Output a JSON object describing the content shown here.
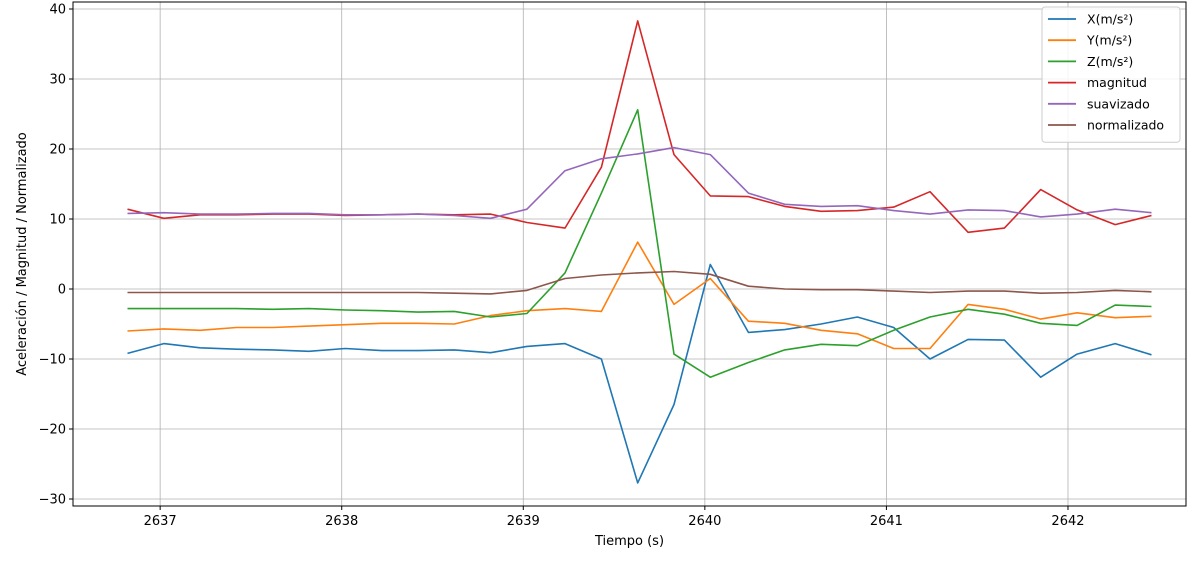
{
  "chart_data": {
    "type": "line",
    "xlabel": "Tiempo (s)",
    "ylabel": "Aceleración / Magnitud / Normalizado",
    "xlim": [
      2636.52,
      2642.65
    ],
    "ylim": [
      -31,
      41
    ],
    "xticks": [
      2637,
      2638,
      2639,
      2640,
      2641,
      2642
    ],
    "xtick_labels": [
      "2637",
      "2638",
      "2639",
      "2640",
      "2641",
      "2642"
    ],
    "yticks": [
      -30,
      -20,
      -10,
      0,
      10,
      20,
      30,
      40
    ],
    "ytick_labels": [
      "−30",
      "−20",
      "−10",
      "0",
      "10",
      "20",
      "30",
      "40"
    ],
    "grid": true,
    "legend_position": "top-right",
    "x": [
      2636.82,
      2637.02,
      2637.22,
      2637.42,
      2637.62,
      2637.82,
      2638.02,
      2638.22,
      2638.42,
      2638.62,
      2638.82,
      2639.02,
      2639.23,
      2639.43,
      2639.63,
      2639.83,
      2640.03,
      2640.24,
      2640.44,
      2640.64,
      2640.84,
      2641.04,
      2641.24,
      2641.45,
      2641.65,
      2641.85,
      2642.05,
      2642.26,
      2642.46
    ],
    "series": [
      {
        "name": "X(m/s²)",
        "color": "#1f77b4",
        "values": [
          -9.2,
          -7.8,
          -8.4,
          -8.6,
          -8.7,
          -8.9,
          -8.5,
          -8.8,
          -8.8,
          -8.7,
          -9.1,
          -8.2,
          -7.8,
          -10.0,
          -27.7,
          -16.5,
          3.5,
          -6.2,
          -5.8,
          -5.0,
          -4.0,
          -5.5,
          -10.0,
          -7.2,
          -7.3,
          -12.6,
          -9.3,
          -7.8,
          -9.4
        ]
      },
      {
        "name": "Y(m/s²)",
        "color": "#ff7f0e",
        "values": [
          -6.0,
          -5.7,
          -5.9,
          -5.5,
          -5.5,
          -5.3,
          -5.1,
          -4.9,
          -4.9,
          -5.0,
          -3.8,
          -3.1,
          -2.8,
          -3.2,
          6.7,
          -2.2,
          1.5,
          -4.6,
          -4.9,
          -5.9,
          -6.4,
          -8.5,
          -8.5,
          -2.2,
          -2.9,
          -4.3,
          -3.4,
          -4.1,
          -3.9
        ]
      },
      {
        "name": "Z(m/s²)",
        "color": "#2ca02c",
        "values": [
          -2.8,
          -2.8,
          -2.8,
          -2.8,
          -2.9,
          -2.8,
          -3.0,
          -3.1,
          -3.3,
          -3.2,
          -4.0,
          -3.5,
          2.3,
          13.7,
          25.6,
          -9.3,
          -12.6,
          -10.5,
          -8.7,
          -7.9,
          -8.1,
          -5.9,
          -4.0,
          -2.9,
          -3.6,
          -4.9,
          -5.2,
          -2.3,
          -2.5
        ]
      },
      {
        "name": "magnitud",
        "color": "#d62728",
        "values": [
          11.4,
          10.1,
          10.6,
          10.6,
          10.7,
          10.7,
          10.5,
          10.6,
          10.7,
          10.6,
          10.7,
          9.5,
          8.7,
          17.4,
          38.3,
          19.2,
          13.3,
          13.2,
          11.8,
          11.1,
          11.2,
          11.7,
          13.9,
          8.1,
          8.7,
          14.2,
          11.3,
          9.2,
          10.5
        ]
      },
      {
        "name": "suavizado",
        "color": "#9467bd",
        "values": [
          10.8,
          10.9,
          10.7,
          10.7,
          10.8,
          10.8,
          10.6,
          10.6,
          10.7,
          10.5,
          10.1,
          11.4,
          16.9,
          18.6,
          19.3,
          20.2,
          19.2,
          13.7,
          12.1,
          11.8,
          11.9,
          11.2,
          10.7,
          11.3,
          11.2,
          10.3,
          10.7,
          11.4,
          10.9
        ]
      },
      {
        "name": "normalizado",
        "color": "#8c564b",
        "values": [
          -0.5,
          -0.5,
          -0.5,
          -0.5,
          -0.5,
          -0.5,
          -0.5,
          -0.5,
          -0.5,
          -0.6,
          -0.7,
          -0.2,
          1.5,
          2.0,
          2.3,
          2.5,
          2.1,
          0.4,
          0.0,
          -0.1,
          -0.1,
          -0.3,
          -0.5,
          -0.3,
          -0.3,
          -0.6,
          -0.5,
          -0.2,
          -0.4
        ]
      }
    ]
  }
}
